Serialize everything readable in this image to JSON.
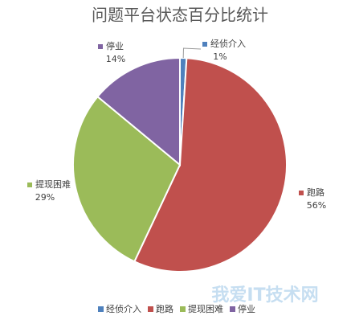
{
  "chart_data": {
    "type": "pie",
    "title": "问题平台状态百分比统计",
    "categories": [
      "经侦介入",
      "跑路",
      "提现困难",
      "停业"
    ],
    "values": [
      1,
      56,
      29,
      14
    ],
    "value_labels": [
      "1%",
      "56%",
      "29%",
      "14%"
    ],
    "colors": [
      "#4f81bd",
      "#c0504d",
      "#9bbb59",
      "#8064a2"
    ],
    "legend": "bottom",
    "watermark": "我爱IT技术网"
  }
}
